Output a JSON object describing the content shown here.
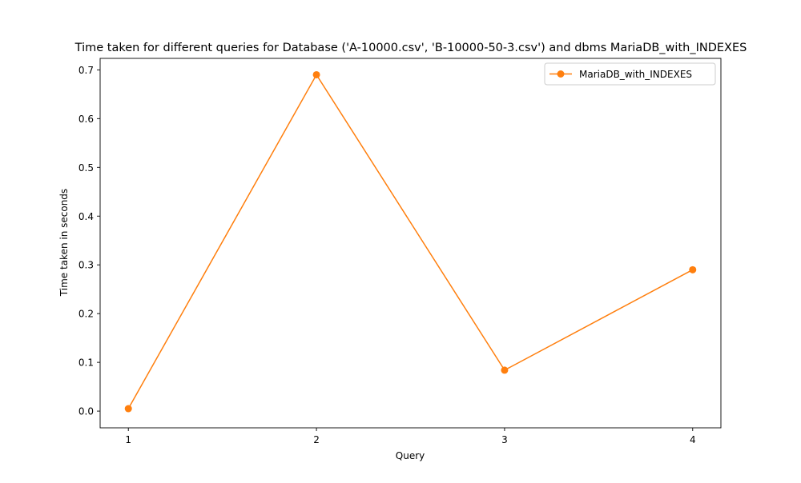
{
  "chart_data": {
    "type": "line",
    "title": "Time taken for different queries for Database ('A-10000.csv', 'B-10000-50-3.csv') and dbms MariaDB_with_INDEXES",
    "xlabel": "Query",
    "ylabel": "Time taken in seconds",
    "x": [
      1,
      2,
      3,
      4
    ],
    "x_tick_labels": [
      "1",
      "2",
      "3",
      "4"
    ],
    "y_ticks": [
      0.0,
      0.1,
      0.2,
      0.3,
      0.4,
      0.5,
      0.6,
      0.7
    ],
    "y_tick_labels": [
      "0.0",
      "0.1",
      "0.2",
      "0.3",
      "0.4",
      "0.5",
      "0.6",
      "0.7"
    ],
    "xlim": [
      0.85,
      4.15
    ],
    "ylim": [
      -0.0343,
      0.7236
    ],
    "grid": false,
    "legend_position": "top-right",
    "series": [
      {
        "name": "MariaDB_with_INDEXES",
        "color": "#ff7f0e",
        "marker": "circle",
        "values": [
          0.005,
          0.69,
          0.084,
          0.29
        ]
      }
    ]
  }
}
